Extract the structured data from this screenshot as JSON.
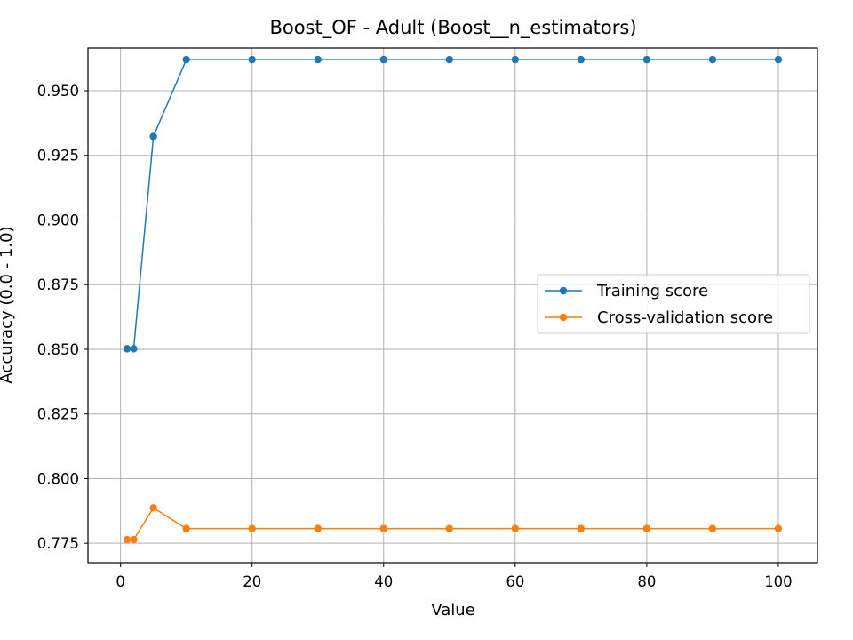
{
  "chart_data": {
    "type": "line",
    "title": "Boost_OF - Adult (Boost__n_estimators)",
    "xlabel": "Value",
    "ylabel": "Accuracy (0.0 - 1.0)",
    "xlim": [
      -4.95,
      105.95
    ],
    "ylim": [
      0.7675,
      0.9665
    ],
    "xticks": [
      0,
      20,
      40,
      60,
      80,
      100
    ],
    "yticks": [
      0.775,
      0.8,
      0.825,
      0.85,
      0.875,
      0.9,
      0.925,
      0.95
    ],
    "xtick_labels": [
      "0",
      "20",
      "40",
      "60",
      "80",
      "100"
    ],
    "ytick_labels": [
      "0.775",
      "0.800",
      "0.825",
      "0.850",
      "0.875",
      "0.900",
      "0.925",
      "0.950"
    ],
    "grid": true,
    "legend_position": "center-right",
    "x": [
      1,
      2,
      5,
      10,
      20,
      30,
      40,
      50,
      60,
      70,
      80,
      90,
      100
    ],
    "series": [
      {
        "name": "Training score",
        "color": "#1f77b4",
        "marker": "circle",
        "values": [
          0.8502,
          0.8502,
          0.9323,
          0.962,
          0.962,
          0.962,
          0.962,
          0.962,
          0.962,
          0.962,
          0.962,
          0.962,
          0.962
        ]
      },
      {
        "name": "Cross-validation score",
        "color": "#ff7f0e",
        "marker": "circle",
        "values": [
          0.7764,
          0.7764,
          0.7887,
          0.7807,
          0.7807,
          0.7807,
          0.7807,
          0.7807,
          0.7807,
          0.7807,
          0.7807,
          0.7807,
          0.7807
        ]
      }
    ]
  }
}
